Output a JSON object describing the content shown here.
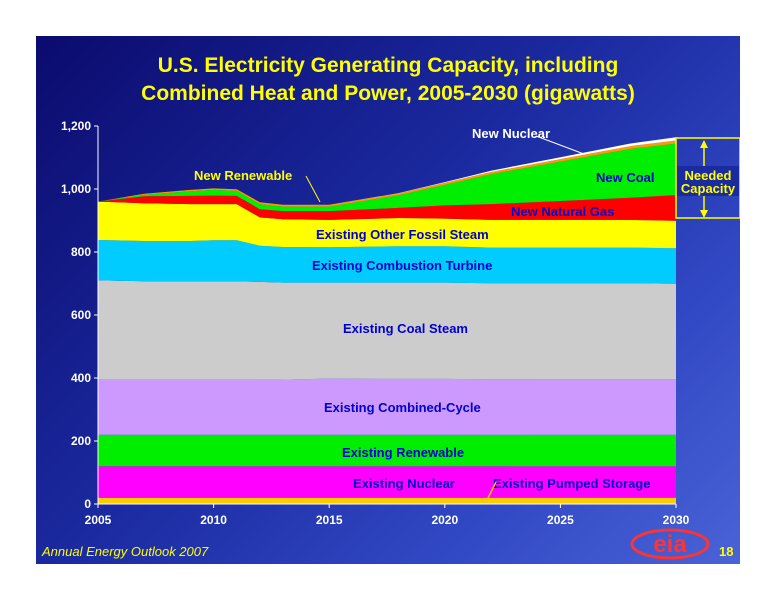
{
  "title_lines": [
    "U.S. Electricity Generating Capacity, including",
    "Combined Heat and Power, 2005-2030 (gigawatts)"
  ],
  "footer": {
    "source": "Annual Energy Outlook 2007",
    "page_number": "18",
    "logo_text": "eia"
  },
  "colors": {
    "existing_pumped_storage": "#ffcc00",
    "existing_nuclear": "#ff00ff",
    "existing_renewable": "#00ee00",
    "existing_combined_cycle": "#cc99ff",
    "existing_coal_steam": "#cccccc",
    "existing_combustion_turbine": "#00ccff",
    "existing_other_fossil_steam": "#ffff00",
    "new_natural_gas": "#ff0000",
    "new_coal": "#00ee00",
    "new_renewable": "#ff9900",
    "new_nuclear": "#ffffff",
    "text_blue": "#0000cc",
    "text_yellow": "#ffff00",
    "text_white": "#ffffff"
  },
  "chart_data": {
    "type": "area",
    "stacked": true,
    "title": "U.S. Electricity Generating Capacity, including Combined Heat and Power, 2005-2030 (gigawatts)",
    "x": [
      2005,
      2007,
      2009,
      2010,
      2011,
      2012,
      2013,
      2015,
      2018,
      2020,
      2022,
      2025,
      2028,
      2030
    ],
    "xticks": [
      "2005",
      "2010",
      "2015",
      "2020",
      "2025",
      "2030"
    ],
    "yticks": [
      "0",
      "200",
      "400",
      "600",
      "800",
      "1,000",
      "1,200"
    ],
    "ylim": [
      0,
      1200
    ],
    "xlim": [
      2005,
      2030
    ],
    "series": [
      {
        "name": "Existing Pumped Storage",
        "key": "existing_pumped_storage",
        "values": [
          20,
          20,
          20,
          20,
          20,
          20,
          20,
          20,
          20,
          20,
          20,
          20,
          20,
          20
        ]
      },
      {
        "name": "Existing Nuclear",
        "key": "existing_nuclear",
        "values": [
          100,
          100,
          100,
          100,
          100,
          100,
          100,
          100,
          100,
          100,
          100,
          100,
          100,
          100
        ]
      },
      {
        "name": "Existing Renewable",
        "key": "existing_renewable",
        "values": [
          100,
          100,
          100,
          100,
          100,
          100,
          100,
          100,
          100,
          100,
          100,
          100,
          100,
          100
        ]
      },
      {
        "name": "Existing Combined-Cycle",
        "key": "existing_combined_cycle",
        "values": [
          175,
          175,
          175,
          175,
          175,
          175,
          175,
          178,
          177,
          177,
          176,
          176,
          176,
          176
        ]
      },
      {
        "name": "Existing Coal Steam",
        "key": "existing_coal_steam",
        "values": [
          315,
          312,
          312,
          312,
          312,
          310,
          308,
          305,
          306,
          306,
          305,
          305,
          305,
          303
        ]
      },
      {
        "name": "Existing Combustion Turbine",
        "key": "existing_combustion_turbine",
        "values": [
          128,
          128,
          128,
          130,
          130,
          115,
          113,
          112,
          115,
          115,
          113,
          113,
          113,
          113
        ]
      },
      {
        "name": "Existing Other Fossil Steam",
        "key": "existing_other_fossil_steam",
        "values": [
          122,
          120,
          117,
          115,
          115,
          90,
          88,
          87,
          90,
          88,
          88,
          88,
          88,
          87
        ]
      },
      {
        "name": "New Natural Gas",
        "key": "new_natural_gas",
        "values": [
          0,
          22,
          26,
          27,
          26,
          26,
          26,
          28,
          32,
          42,
          50,
          60,
          70,
          82
        ]
      },
      {
        "name": "New Coal",
        "key": "new_coal",
        "values": [
          0,
          5,
          15,
          18,
          16,
          16,
          14,
          14,
          40,
          65,
          95,
          125,
          155,
          163
        ]
      },
      {
        "name": "New Renewable",
        "key": "new_renewable",
        "values": [
          0,
          3,
          4,
          5,
          5,
          6,
          6,
          6,
          6,
          7,
          7,
          8,
          9,
          10
        ]
      },
      {
        "name": "New Nuclear",
        "key": "new_nuclear",
        "values": [
          0,
          0,
          0,
          0,
          0,
          0,
          0,
          0,
          1,
          2,
          4,
          6,
          8,
          10
        ]
      }
    ],
    "annotations": {
      "needed_capacity": {
        "label_line1": "Needed",
        "label_line2": "Capacity",
        "range": [
          898,
          1158
        ]
      }
    }
  },
  "labels": {
    "existing_pumped_storage": "Existing Pumped Storage",
    "existing_nuclear": "Existing Nuclear",
    "existing_renewable": "Existing Renewable",
    "existing_combined_cycle": "Existing Combined-Cycle",
    "existing_coal_steam": "Existing Coal Steam",
    "existing_combustion_turbine": "Existing Combustion Turbine",
    "existing_other_fossil_steam": "Existing Other Fossil Steam",
    "new_natural_gas": "New Natural Gas",
    "new_coal": "New Coal",
    "new_renewable": "New Renewable",
    "new_nuclear": "New Nuclear"
  }
}
